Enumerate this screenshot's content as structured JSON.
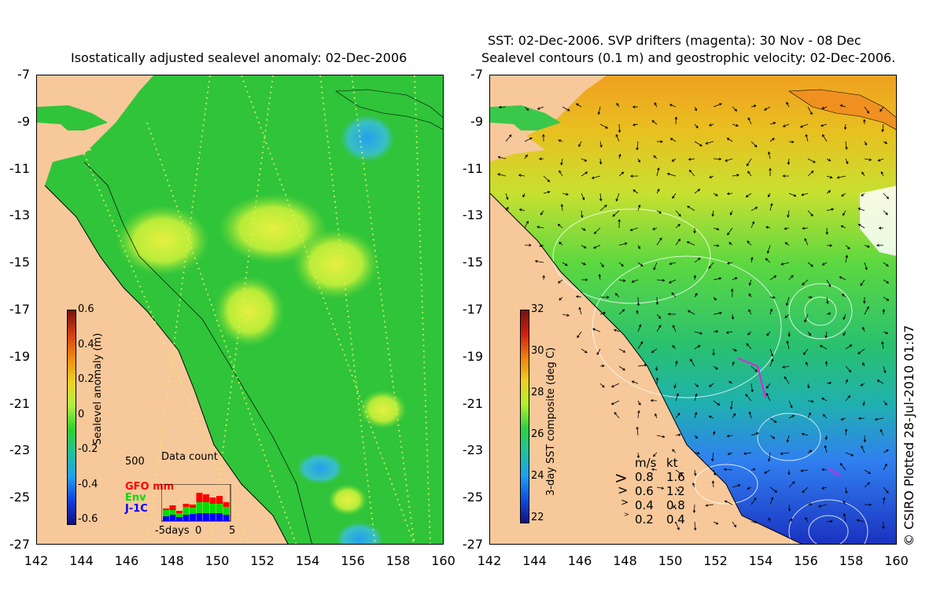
{
  "left_panel": {
    "title": "Isostatically adjusted sealevel anomaly: 02-Dec-2006",
    "colorbar_label": "Sealevel anomaly (m)",
    "colorbar_ticks": [
      "0.6",
      "0.4",
      "0.2",
      "0",
      "-0.2",
      "-0.4",
      "-0.6"
    ],
    "inset": {
      "title": "Data count",
      "ymax_label": "500",
      "legend": [
        {
          "label": "GFO mm",
          "color": "#ff0000"
        },
        {
          "label": "Env",
          "color": "#00dd00"
        },
        {
          "label": "J-1C",
          "color": "#0000ff"
        }
      ],
      "xticks": [
        "-5days",
        "0",
        "5"
      ]
    }
  },
  "right_panel": {
    "title_line1": "SST: 02-Dec-2006. SVP drifters (magenta): 30 Nov - 08 Dec",
    "title_line2": "Sealevel contours (0.1 m) and geostrophic velocity: 02-Dec-2006.",
    "colorbar_label": "3-day SST composite (deg C)",
    "colorbar_ticks": [
      "32",
      "30",
      "28",
      "26",
      "24",
      "22"
    ],
    "velocity_legend": {
      "header_ms": "m/s",
      "header_kt": "kt",
      "rows": [
        {
          "ms": "0.8",
          "kt": "1.6"
        },
        {
          "ms": "0.6",
          "kt": "1.2"
        },
        {
          "ms": "0.4",
          "kt": "0.8"
        },
        {
          "ms": "0.2",
          "kt": "0.4"
        }
      ]
    }
  },
  "axes": {
    "y_ticks": [
      "-7",
      "-9",
      "-11",
      "-13",
      "-15",
      "-17",
      "-19",
      "-21",
      "-23",
      "-25",
      "-27"
    ],
    "x_ticks": [
      "142",
      "144",
      "146",
      "148",
      "150",
      "152",
      "154",
      "156",
      "158",
      "160"
    ]
  },
  "copyright": "© CSIRO Plotted 28-Jul-2010 01:07",
  "colors": {
    "land": "#f7c89a",
    "ocean_green": "#2fc43a",
    "anomaly_yellow": "#c9f03a",
    "sst_orange": "#f0a020",
    "sst_yellow": "#e8e020",
    "sst_blue": "#3a9af0",
    "sst_darkblue": "#1a30c0"
  }
}
